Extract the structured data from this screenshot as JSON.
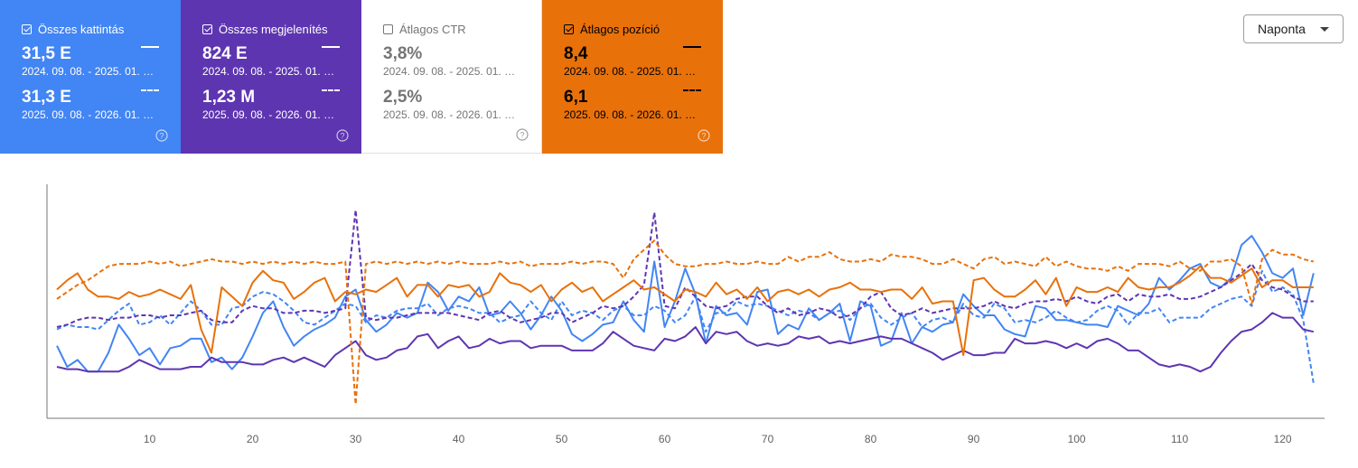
{
  "cards": [
    {
      "id": "clicks",
      "label": "Összes kattintás",
      "checked": true,
      "values": [
        {
          "value": "31,5 E",
          "range": "2024. 09. 08. - 2025. 01. …"
        },
        {
          "value": "31,3 E",
          "range": "2025. 09. 08. - 2026. 01. …"
        }
      ]
    },
    {
      "id": "impressions",
      "label": "Összes megjelenítés",
      "checked": true,
      "values": [
        {
          "value": "824 E",
          "range": "2024. 09. 08. - 2025. 01. …"
        },
        {
          "value": "1,23 M",
          "range": "2025. 09. 08. - 2026. 01. …"
        }
      ]
    },
    {
      "id": "ctr",
      "label": "Átlagos CTR",
      "checked": false,
      "values": [
        {
          "value": "3,8%",
          "range": "2024. 09. 08. - 2025. 01. …"
        },
        {
          "value": "2,5%",
          "range": "2025. 09. 08. - 2026. 01. …"
        }
      ]
    },
    {
      "id": "position",
      "label": "Átlagos pozíció",
      "checked": true,
      "values": [
        {
          "value": "8,4",
          "range": "2024. 09. 08. - 2025. 01. …"
        },
        {
          "value": "6,1",
          "range": "2025. 09. 08. - 2026. 01. …"
        }
      ]
    }
  ],
  "colors": {
    "clicks": "#4285f4",
    "impressions": "#5e35b1",
    "position": "#e8710a",
    "axis": "#757575"
  },
  "dropdown": {
    "selected": "Naponta"
  },
  "chart_data": {
    "type": "line",
    "x_range": [
      1,
      123
    ],
    "ylim": [
      0,
      100
    ],
    "x_ticks": [
      "10",
      "20",
      "30",
      "40",
      "50",
      "60",
      "70",
      "80",
      "90",
      "100",
      "110",
      "120"
    ],
    "y_axis_labels": "none",
    "grid": false,
    "series": [
      {
        "name": "Összes kattintás (2024. 09. 08. - 2025. 01. …)",
        "metric": "clicks",
        "dashed": false,
        "values": [
          31,
          22,
          25,
          20,
          20,
          28,
          40,
          34,
          27,
          30,
          23,
          30,
          31,
          34,
          34,
          24,
          26,
          21,
          26,
          35,
          45,
          50,
          39,
          31,
          35,
          38,
          40,
          43,
          52,
          55,
          42,
          37,
          40,
          45,
          43,
          45,
          58,
          54,
          46,
          52,
          50,
          56,
          44,
          45,
          50,
          45,
          38,
          44,
          52,
          46,
          36,
          33,
          36,
          40,
          41,
          50,
          42,
          37,
          67,
          39,
          50,
          64,
          53,
          32,
          48,
          44,
          45,
          40,
          54,
          55,
          36,
          40,
          38,
          47,
          42,
          45,
          49,
          33,
          50,
          48,
          31,
          33,
          45,
          32,
          39,
          37,
          40,
          41,
          53,
          48,
          44,
          44,
          38,
          36,
          35,
          48,
          47,
          42,
          42,
          41,
          40,
          40,
          39,
          48,
          46,
          44,
          49,
          60,
          55,
          59,
          64,
          66,
          58,
          56,
          60,
          74,
          78,
          71,
          62,
          60,
          64,
          44,
          62
        ]
      },
      {
        "name": "Összes kattintás (2025. 09. 08. - 2026. 01. …)",
        "metric": "clicks",
        "dashed": true,
        "values": [
          38,
          40,
          39,
          39,
          38,
          42,
          46,
          49,
          40,
          41,
          44,
          40,
          45,
          50,
          46,
          40,
          40,
          47,
          48,
          52,
          54,
          53,
          50,
          46,
          41,
          40,
          43,
          46,
          49,
          48,
          41,
          44,
          43,
          46,
          47,
          47,
          49,
          44,
          47,
          48,
          47,
          45,
          45,
          41,
          43,
          44,
          50,
          45,
          42,
          50,
          44,
          46,
          45,
          42,
          46,
          48,
          44,
          44,
          48,
          46,
          41,
          44,
          52,
          37,
          45,
          45,
          50,
          48,
          49,
          48,
          46,
          44,
          46,
          45,
          42,
          45,
          46,
          42,
          47,
          49,
          43,
          40,
          43,
          45,
          39,
          42,
          43,
          41,
          49,
          44,
          43,
          49,
          47,
          41,
          42,
          41,
          43,
          46,
          43,
          41,
          42,
          46,
          48,
          46,
          40,
          45,
          45,
          47,
          41,
          43,
          43,
          43,
          47,
          49,
          51,
          52,
          48,
          63,
          54,
          56,
          53,
          42,
          15
        ]
      },
      {
        "name": "Összes megjelenítés (2024. 09. 08. - 2025. 01. …)",
        "metric": "impressions",
        "dashed": false,
        "values": [
          22,
          21,
          21,
          20,
          20,
          20,
          20,
          22,
          25,
          23,
          21,
          21,
          21,
          22,
          22,
          26,
          24,
          24,
          24,
          23,
          23,
          25,
          26,
          24,
          26,
          24,
          22,
          27,
          30,
          33,
          27,
          25,
          26,
          29,
          30,
          35,
          36,
          30,
          33,
          35,
          30,
          31,
          34,
          32,
          33,
          33,
          30,
          31,
          31,
          31,
          29,
          29,
          29,
          32,
          37,
          34,
          31,
          30,
          29,
          34,
          33,
          35,
          39,
          32,
          37,
          36,
          37,
          33,
          31,
          32,
          31,
          32,
          35,
          34,
          35,
          32,
          33,
          32,
          33,
          34,
          35,
          34,
          34,
          32,
          30,
          28,
          25,
          27,
          29,
          27,
          27,
          28,
          28,
          34,
          32,
          32,
          33,
          32,
          30,
          32,
          30,
          33,
          34,
          32,
          29,
          29,
          26,
          23,
          22,
          23,
          22,
          20,
          22,
          28,
          33,
          37,
          38,
          41,
          45,
          43,
          43,
          38,
          37
        ]
      },
      {
        "name": "Összes megjelenítés (2025. 09. 08. - 2026. 01. …)",
        "metric": "impressions",
        "dashed": true,
        "values": [
          39,
          40,
          42,
          43,
          43,
          42,
          43,
          43,
          44,
          44,
          43,
          44,
          44,
          45,
          46,
          42,
          41,
          41,
          46,
          48,
          47,
          47,
          45,
          45,
          46,
          46,
          45,
          46,
          47,
          89,
          43,
          42,
          43,
          43,
          44,
          45,
          45,
          45,
          45,
          44,
          43,
          42,
          45,
          46,
          43,
          41,
          42,
          43,
          45,
          45,
          41,
          43,
          45,
          48,
          47,
          48,
          52,
          57,
          88,
          48,
          47,
          56,
          52,
          48,
          47,
          48,
          51,
          52,
          52,
          48,
          45,
          47,
          44,
          45,
          47,
          46,
          43,
          44,
          47,
          52,
          54,
          47,
          44,
          45,
          47,
          45,
          46,
          47,
          47,
          47,
          48,
          50,
          48,
          47,
          49,
          50,
          50,
          51,
          50,
          52,
          50,
          49,
          52,
          53,
          50,
          53,
          52,
          52,
          53,
          51,
          51,
          52,
          54,
          56,
          59,
          62,
          66,
          59,
          56,
          55,
          52,
          50,
          50
        ]
      },
      {
        "name": "Átlagos pozíció (2024. 09. 08. - 2025. 01. …)",
        "metric": "position",
        "dashed": false,
        "values": [
          55,
          59,
          62,
          55,
          52,
          52,
          51,
          54,
          52,
          53,
          55,
          53,
          51,
          57,
          38,
          28,
          56,
          52,
          48,
          58,
          63,
          59,
          58,
          51,
          54,
          58,
          60,
          50,
          54,
          53,
          55,
          54,
          57,
          60,
          52,
          57,
          57,
          52,
          57,
          56,
          57,
          52,
          54,
          62,
          58,
          57,
          54,
          57,
          50,
          55,
          58,
          54,
          56,
          50,
          53,
          56,
          59,
          55,
          56,
          53,
          50,
          55,
          54,
          52,
          58,
          53,
          55,
          51,
          56,
          50,
          54,
          55,
          53,
          55,
          52,
          55,
          56,
          58,
          55,
          55,
          54,
          55,
          55,
          51,
          56,
          49,
          50,
          50,
          27,
          59,
          60,
          55,
          52,
          52,
          55,
          59,
          53,
          60,
          48,
          56,
          54,
          54,
          56,
          54,
          60,
          56,
          55,
          56,
          56,
          58,
          61,
          65,
          60,
          60,
          58,
          61,
          64,
          56,
          59,
          59,
          56,
          56,
          56
        ]
      },
      {
        "name": "Átlagos pozíció (2025. 09. 08. - 2026. 01. …)",
        "metric": "position",
        "dashed": true,
        "values": [
          51,
          54,
          57,
          59,
          62,
          65,
          66,
          66,
          66,
          67,
          66,
          67,
          65,
          66,
          67,
          68,
          67,
          67,
          66,
          67,
          66,
          67,
          66,
          67,
          66,
          67,
          66,
          66,
          67,
          6,
          66,
          67,
          66,
          67,
          66,
          67,
          66,
          67,
          66,
          67,
          66,
          66,
          66,
          67,
          66,
          67,
          65,
          66,
          66,
          66,
          67,
          66,
          67,
          67,
          66,
          60,
          68,
          72,
          76,
          70,
          66,
          65,
          65,
          66,
          66,
          67,
          66,
          66,
          67,
          66,
          66,
          69,
          67,
          69,
          69,
          71,
          68,
          67,
          67,
          68,
          67,
          70,
          69,
          69,
          68,
          66,
          66,
          68,
          66,
          64,
          68,
          69,
          66,
          67,
          66,
          65,
          69,
          65,
          67,
          65,
          64,
          64,
          63,
          65,
          63,
          66,
          66,
          66,
          65,
          67,
          64,
          63,
          67,
          67,
          68,
          65,
          49,
          68,
          72,
          70,
          70,
          68,
          67
        ]
      }
    ]
  }
}
